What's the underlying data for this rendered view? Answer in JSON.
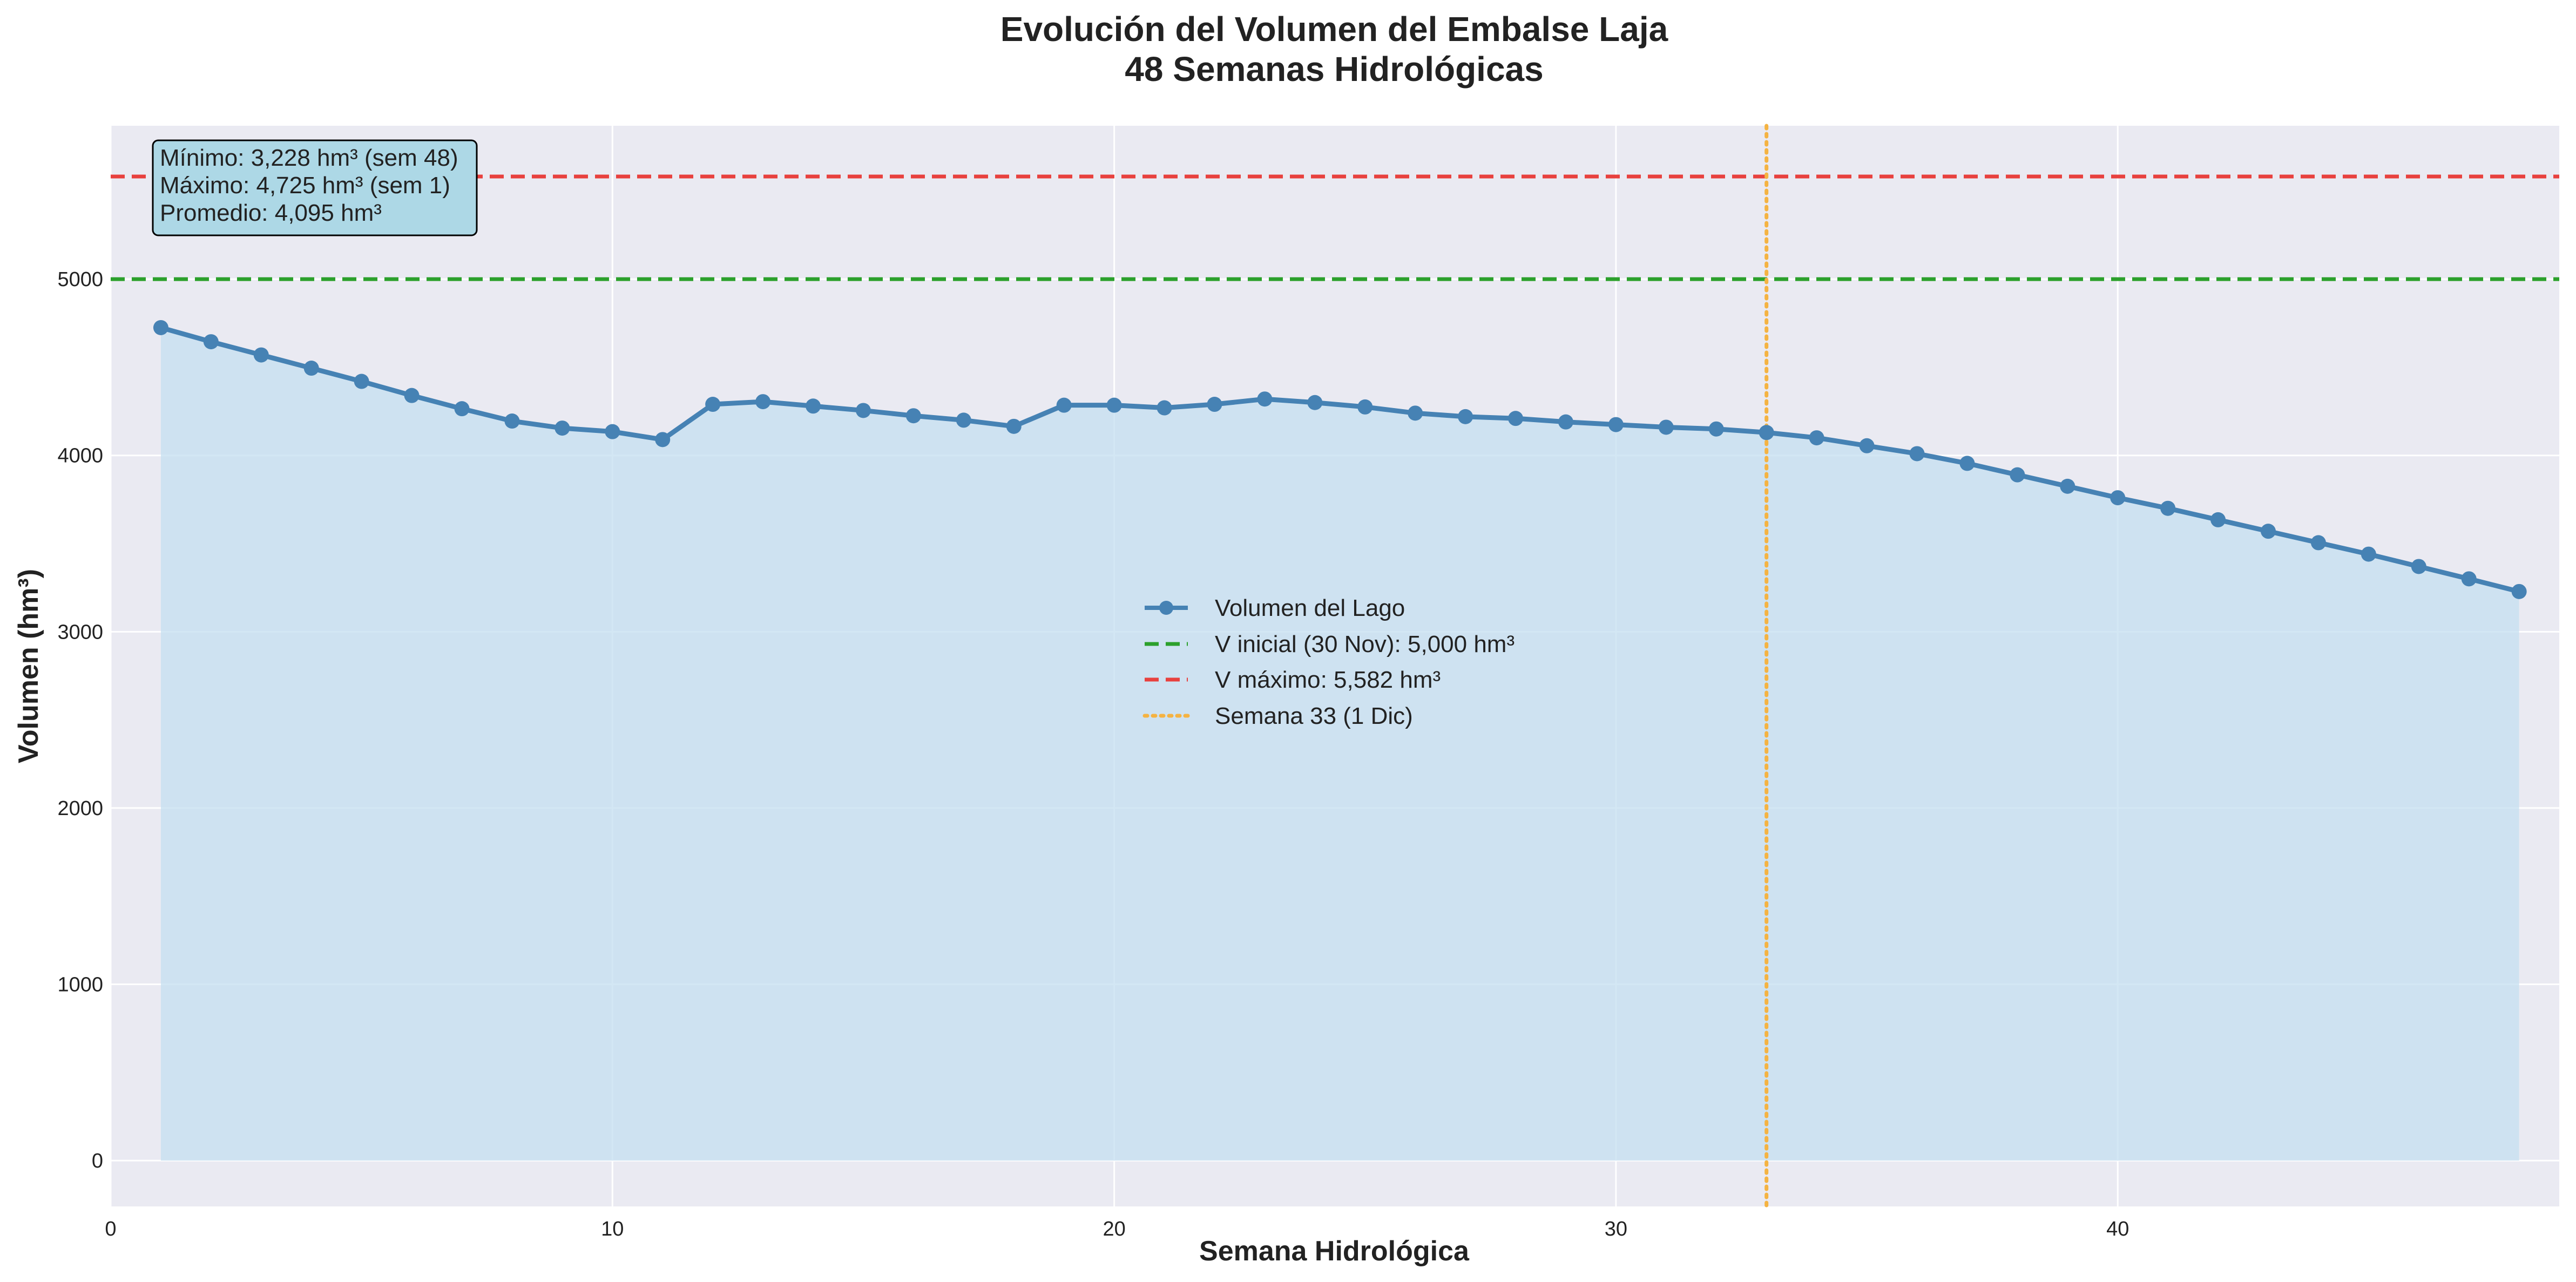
{
  "chart_data": {
    "type": "line",
    "title_line1": "Evolución del Volumen del Embalse Laja",
    "title_line2": "48 Semanas Hidrológicas",
    "xlabel": "Semana Hidrológica",
    "ylabel": "Volumen (hm³)",
    "xlim": [
      0,
      48.8
    ],
    "ylim": [
      -260,
      5870
    ],
    "xticks": [
      0,
      10,
      20,
      30,
      40
    ],
    "yticks": [
      0,
      1000,
      2000,
      3000,
      4000,
      5000
    ],
    "grid": true,
    "legend_position": "center",
    "series": [
      {
        "name": "Volumen del Lago",
        "color": "#4682B4",
        "fill_color": "#c4dff0",
        "x": [
          1,
          2,
          3,
          4,
          5,
          6,
          7,
          8,
          9,
          10,
          11,
          12,
          13,
          14,
          15,
          16,
          17,
          18,
          19,
          20,
          21,
          22,
          23,
          24,
          25,
          26,
          27,
          28,
          29,
          30,
          31,
          32,
          33,
          34,
          35,
          36,
          37,
          38,
          39,
          40,
          41,
          42,
          43,
          44,
          45,
          46,
          47,
          48
        ],
        "values": [
          4725,
          4645,
          4570,
          4495,
          4420,
          4340,
          4265,
          4195,
          4155,
          4135,
          4090,
          4290,
          4305,
          4280,
          4255,
          4225,
          4200,
          4165,
          4285,
          4285,
          4270,
          4290,
          4320,
          4300,
          4275,
          4240,
          4220,
          4210,
          4190,
          4175,
          4160,
          4150,
          4130,
          4100,
          4055,
          4010,
          3955,
          3890,
          3825,
          3760,
          3700,
          3635,
          3570,
          3505,
          3440,
          3370,
          3300,
          3228
        ]
      }
    ],
    "reference_lines": [
      {
        "name": "V inicial (30 Nov): 5,000 hm³",
        "orientation": "horizontal",
        "value": 5000,
        "color": "#2ca02c",
        "style": "dashed"
      },
      {
        "name": "V máximo: 5,582 hm³",
        "orientation": "horizontal",
        "value": 5582,
        "color": "#e8413e",
        "style": "dashed"
      },
      {
        "name": "Semana 33 (1 Dic)",
        "orientation": "vertical",
        "value": 33,
        "color": "#f5b342",
        "style": "dotted"
      }
    ],
    "stats_box": {
      "lines": [
        "Mínimo: 3,228 hm³ (sem 48)",
        "Máximo: 4,725 hm³ (sem 1)",
        "Promedio: 4,095 hm³"
      ],
      "background": "#add8e6"
    },
    "colors": {
      "plot_background": "#eaeaf2",
      "grid": "#ffffff"
    }
  }
}
